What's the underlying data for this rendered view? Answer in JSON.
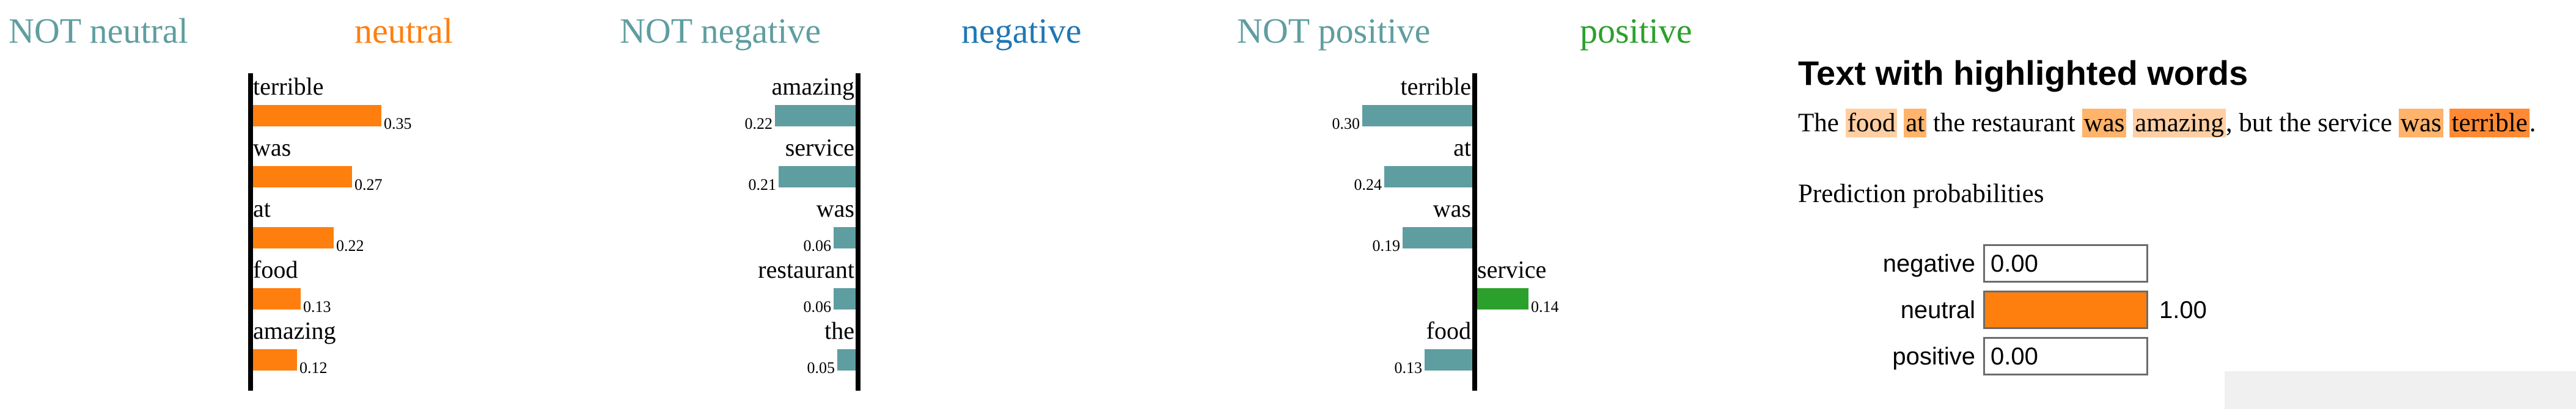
{
  "colors": {
    "not_class": "#5f9ea0",
    "neutral": "#ff7f0e",
    "negative": "#1f77b4",
    "positive": "#2ca02c",
    "highlight_light": "#ffcfa3",
    "highlight_mid": "#ffb36b",
    "highlight_strong": "#ff8a33"
  },
  "chart_data": [
    {
      "type": "bar",
      "orientation": "horizontal",
      "class": "neutral",
      "left_label": "NOT neutral",
      "right_label": "neutral",
      "categories": [
        "terrible",
        "was",
        "at",
        "food",
        "amazing"
      ],
      "values": [
        0.35,
        0.27,
        0.22,
        0.13,
        0.12
      ],
      "sides": [
        "right",
        "right",
        "right",
        "right",
        "right"
      ],
      "value_labels": [
        "0.35",
        "0.27",
        "0.22",
        "0.13",
        "0.12"
      ],
      "xlim": [
        -0.35,
        0.35
      ]
    },
    {
      "type": "bar",
      "orientation": "horizontal",
      "class": "negative",
      "left_label": "NOT negative",
      "right_label": "negative",
      "categories": [
        "amazing",
        "service",
        "was",
        "restaurant",
        "the"
      ],
      "values": [
        0.22,
        0.21,
        0.06,
        0.06,
        0.05
      ],
      "sides": [
        "left",
        "left",
        "left",
        "left",
        "left"
      ],
      "value_labels": [
        "0.22",
        "0.21",
        "0.06",
        "0.06",
        "0.05"
      ],
      "xlim": [
        -0.35,
        0.35
      ]
    },
    {
      "type": "bar",
      "orientation": "horizontal",
      "class": "positive",
      "left_label": "NOT positive",
      "right_label": "positive",
      "categories": [
        "terrible",
        "at",
        "was",
        "service",
        "food"
      ],
      "values": [
        0.3,
        0.24,
        0.19,
        0.14,
        0.13
      ],
      "sides": [
        "left",
        "left",
        "left",
        "right",
        "left"
      ],
      "value_labels": [
        "0.30",
        "0.24",
        "0.19",
        "0.14",
        "0.13"
      ],
      "xlim": [
        -0.35,
        0.35
      ]
    }
  ],
  "highlighted_text": {
    "title": "Text with highlighted words",
    "tokens": [
      {
        "text": "The",
        "level": 0
      },
      {
        "text": " ",
        "level": 0
      },
      {
        "text": "food",
        "level": 1
      },
      {
        "text": " ",
        "level": 0
      },
      {
        "text": "at",
        "level": 2
      },
      {
        "text": " the restaurant ",
        "level": 0
      },
      {
        "text": "was",
        "level": 2
      },
      {
        "text": " ",
        "level": 0
      },
      {
        "text": "amazing",
        "level": 1
      },
      {
        "text": ", but the service ",
        "level": 0
      },
      {
        "text": "was",
        "level": 2
      },
      {
        "text": " ",
        "level": 0
      },
      {
        "text": "terrible",
        "level": 3
      },
      {
        "text": ".",
        "level": 0
      }
    ]
  },
  "prediction": {
    "title": "Prediction probabilities",
    "rows": [
      {
        "label": "negative",
        "value": 0.0,
        "text": "0.00"
      },
      {
        "label": "neutral",
        "value": 1.0,
        "text": "1.00"
      },
      {
        "label": "positive",
        "value": 0.0,
        "text": "0.00"
      }
    ]
  }
}
